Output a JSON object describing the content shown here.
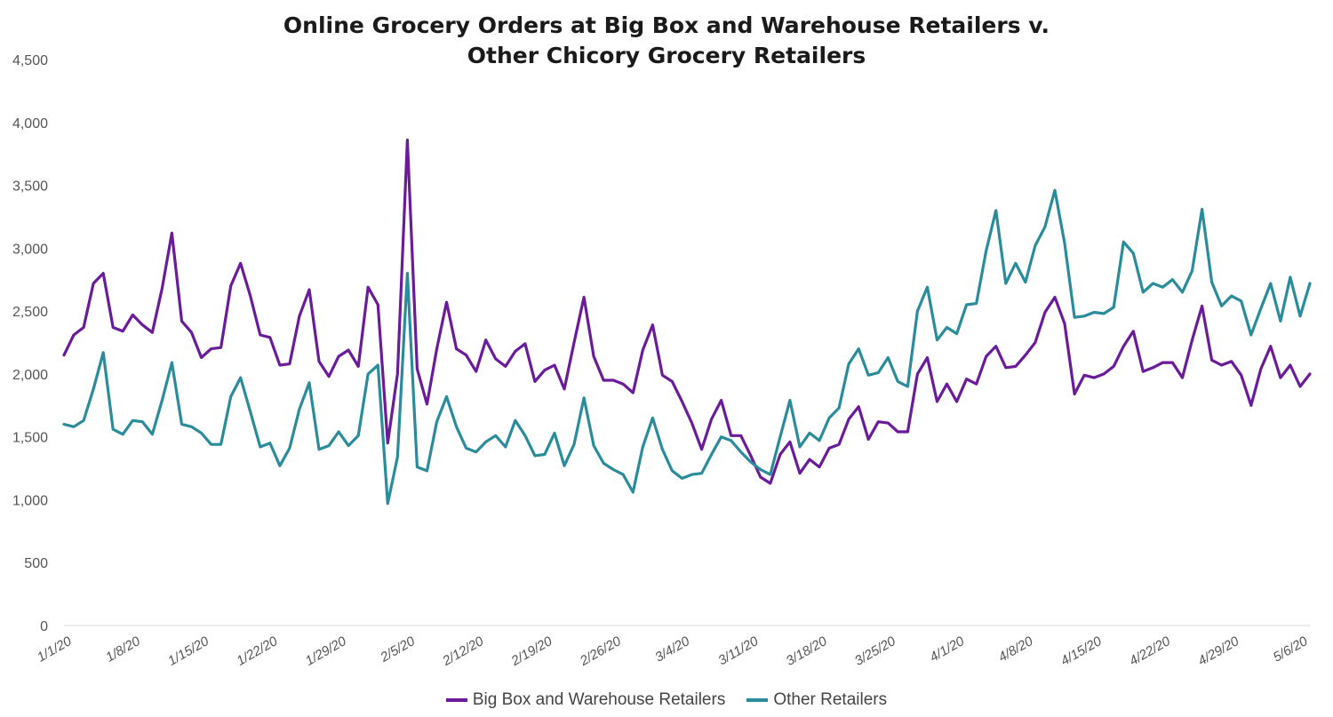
{
  "chart_data": {
    "type": "line",
    "title_lines": [
      "Online Grocery Orders at Big Box and Warehouse Retailers v.",
      "Other Chicory Grocery Retailers"
    ],
    "xlabel": "",
    "ylabel": "",
    "ylim": [
      0,
      4500
    ],
    "yticks": [
      0,
      500,
      1000,
      1500,
      2000,
      2500,
      3000,
      3500,
      4000,
      4500
    ],
    "ytick_labels": [
      "0",
      "500",
      "1,000",
      "1,500",
      "2,000",
      "2,500",
      "3,000",
      "3,500",
      "4,000",
      "4,500"
    ],
    "x_start": "1/1/20",
    "x_end": "5/8/20",
    "xtick_labels": [
      "1/1/20",
      "1/8/20",
      "1/15/20",
      "1/22/20",
      "1/29/20",
      "2/5/20",
      "2/12/20",
      "2/19/20",
      "2/26/20",
      "3/4/20",
      "3/11/20",
      "3/18/20",
      "3/25/20",
      "4/1/20",
      "4/8/20",
      "4/15/20",
      "4/22/20",
      "4/29/20",
      "5/6/20"
    ],
    "grid": false,
    "legend_position": "bottom",
    "series": [
      {
        "name": "Big Box and Warehouse Retailers",
        "color": "#6a1b9a",
        "values": [
          2150,
          2310,
          2370,
          2720,
          2800,
          2370,
          2340,
          2470,
          2390,
          2330,
          2680,
          3120,
          2420,
          2330,
          2130,
          2200,
          2210,
          2700,
          2880,
          2620,
          2310,
          2290,
          2070,
          2080,
          2460,
          2670,
          2100,
          1980,
          2140,
          2190,
          2060,
          2690,
          2550,
          1450,
          2000,
          3860,
          2040,
          1760,
          2200,
          2570,
          2200,
          2150,
          2020,
          2270,
          2120,
          2060,
          2180,
          2240,
          1940,
          2030,
          2070,
          1880,
          2250,
          2610,
          2140,
          1950,
          1950,
          1920,
          1850,
          2190,
          2390,
          1990,
          1940,
          1780,
          1610,
          1400,
          1640,
          1790,
          1510,
          1510,
          1350,
          1180,
          1130,
          1360,
          1460,
          1210,
          1320,
          1260,
          1410,
          1440,
          1640,
          1740,
          1480,
          1620,
          1610,
          1540,
          1540,
          2000,
          2130,
          1780,
          1920,
          1780,
          1960,
          1920,
          2140,
          2220,
          2050,
          2060,
          2150,
          2250,
          2490,
          2610,
          2400,
          1840,
          1990,
          1970,
          2000,
          2060,
          2220,
          2340,
          2020,
          2050,
          2090,
          2090,
          1970,
          2270,
          2540,
          2110,
          2070,
          2100,
          1990,
          1750,
          2040,
          2220,
          1970,
          2070,
          1900,
          2000
        ]
      },
      {
        "name": "Other Retailers",
        "color": "#2a8c9a",
        "values": [
          1600,
          1580,
          1630,
          1880,
          2170,
          1560,
          1520,
          1630,
          1620,
          1520,
          1790,
          2090,
          1600,
          1580,
          1530,
          1440,
          1440,
          1820,
          1970,
          1700,
          1420,
          1450,
          1270,
          1410,
          1720,
          1930,
          1400,
          1430,
          1540,
          1430,
          1510,
          2000,
          2070,
          970,
          1340,
          2800,
          1260,
          1230,
          1620,
          1820,
          1580,
          1410,
          1380,
          1460,
          1510,
          1420,
          1630,
          1510,
          1350,
          1360,
          1530,
          1270,
          1440,
          1810,
          1430,
          1290,
          1240,
          1200,
          1060,
          1420,
          1650,
          1400,
          1230,
          1170,
          1200,
          1210,
          1360,
          1500,
          1470,
          1380,
          1300,
          1240,
          1200,
          1500,
          1790,
          1420,
          1530,
          1470,
          1650,
          1730,
          2080,
          2200,
          1990,
          2010,
          2130,
          1940,
          1900,
          2500,
          2690,
          2270,
          2370,
          2320,
          2550,
          2560,
          2980,
          3300,
          2720,
          2880,
          2730,
          3020,
          3170,
          3460,
          3040,
          2450,
          2460,
          2490,
          2480,
          2530,
          3050,
          2960,
          2650,
          2720,
          2690,
          2750,
          2650,
          2820,
          3310,
          2730,
          2540,
          2620,
          2580,
          2310,
          2520,
          2720,
          2420,
          2770,
          2460,
          2720
        ]
      }
    ]
  }
}
